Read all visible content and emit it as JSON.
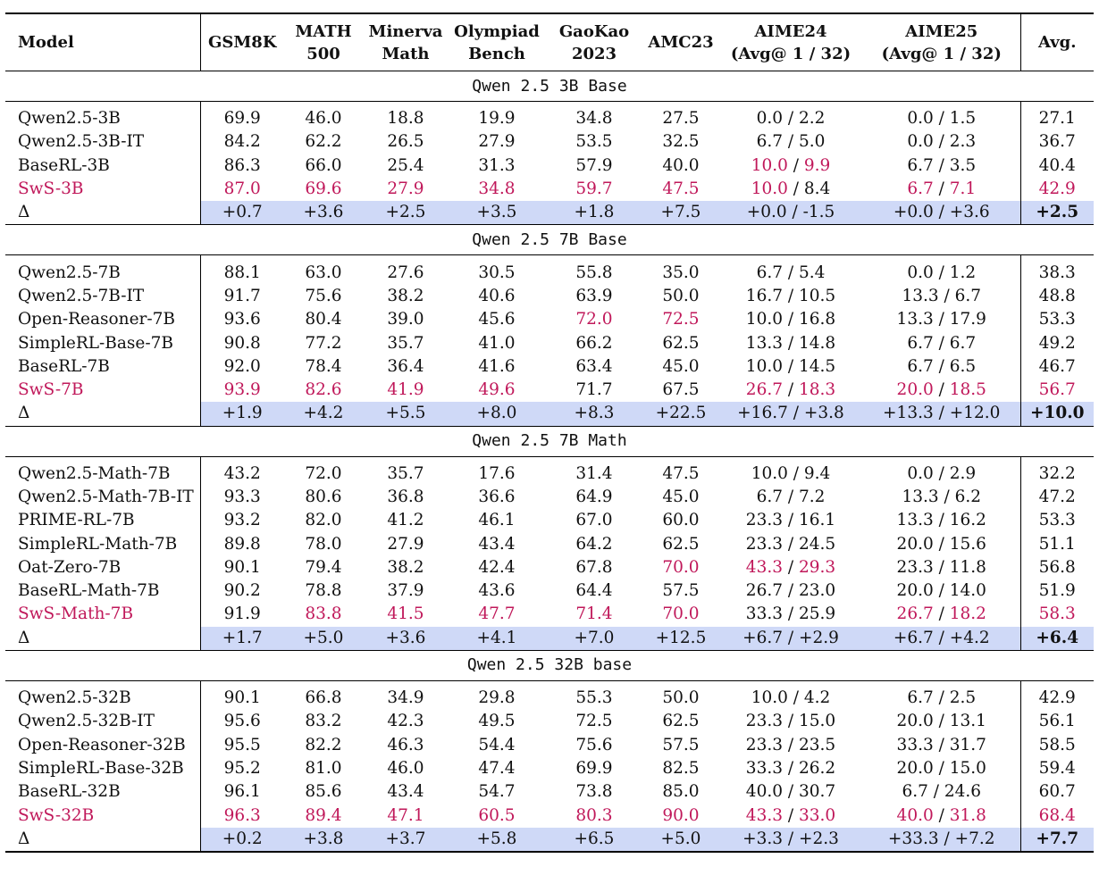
{
  "columns": [
    {
      "lines": [
        "Model"
      ]
    },
    {
      "lines": [
        "GSM8K"
      ]
    },
    {
      "lines": [
        "MATH",
        "500"
      ]
    },
    {
      "lines": [
        "Minerva",
        "Math"
      ]
    },
    {
      "lines": [
        "Olympiad",
        "Bench"
      ]
    },
    {
      "lines": [
        "GaoKao",
        "2023"
      ]
    },
    {
      "lines": [
        "AMC23"
      ]
    },
    {
      "lines": [
        "AIME24",
        "(Avg@ 1 / 32)"
      ]
    },
    {
      "lines": [
        "AIME25",
        "(Avg@ 1 / 32)"
      ]
    },
    {
      "lines": [
        "Avg."
      ]
    }
  ],
  "highlight_color": "#c0185a",
  "delta_fill": "#cfd9f7",
  "groups": [
    {
      "title": "Qwen 2.5 3B Base",
      "rows": [
        {
          "model": "Qwen2.5-3B",
          "cells": [
            "69.9",
            "46.0",
            "18.8",
            "19.9",
            "34.8",
            "27.5",
            [
              "0.0",
              "2.2"
            ],
            [
              "0.0",
              "1.5"
            ],
            "27.1"
          ]
        },
        {
          "model": "Qwen2.5-3B-IT",
          "cells": [
            "84.2",
            "62.2",
            "26.5",
            "27.9",
            "53.5",
            "32.5",
            [
              "6.7",
              "5.0"
            ],
            [
              "0.0",
              "2.3"
            ],
            "36.7"
          ]
        },
        {
          "model": "BaseRL-3B",
          "cells": [
            "86.3",
            "66.0",
            "25.4",
            "31.3",
            "57.9",
            "40.0",
            [
              "10.0",
              "9.9"
            ],
            [
              "6.7",
              "3.5"
            ],
            "40.4"
          ],
          "hl": [
            "6a",
            "6b"
          ]
        },
        {
          "model": "SwS-3B",
          "model_hl": true,
          "cells": [
            "87.0",
            "69.6",
            "27.9",
            "34.8",
            "59.7",
            "47.5",
            [
              "10.0",
              "8.4"
            ],
            [
              "6.7",
              "7.1"
            ],
            "42.9"
          ],
          "hl": [
            "0",
            "1",
            "2",
            "3",
            "4",
            "5",
            "6a",
            "7a",
            "7b",
            "8"
          ]
        },
        {
          "model": "Δ",
          "delta": true,
          "cells": [
            "+0.7",
            "+3.6",
            "+2.5",
            "+3.5",
            "+1.8",
            "+7.5",
            [
              "+0.0",
              "-1.5"
            ],
            [
              "+0.0",
              "+3.6"
            ],
            "+2.5"
          ]
        }
      ]
    },
    {
      "title": "Qwen 2.5 7B Base",
      "rows": [
        {
          "model": "Qwen2.5-7B",
          "cells": [
            "88.1",
            "63.0",
            "27.6",
            "30.5",
            "55.8",
            "35.0",
            [
              "6.7",
              "5.4"
            ],
            [
              "0.0",
              "1.2"
            ],
            "38.3"
          ]
        },
        {
          "model": "Qwen2.5-7B-IT",
          "cells": [
            "91.7",
            "75.6",
            "38.2",
            "40.6",
            "63.9",
            "50.0",
            [
              "16.7",
              "10.5"
            ],
            [
              "13.3",
              "6.7"
            ],
            "48.8"
          ]
        },
        {
          "model": "Open-Reasoner-7B",
          "cells": [
            "93.6",
            "80.4",
            "39.0",
            "45.6",
            "72.0",
            "72.5",
            [
              "10.0",
              "16.8"
            ],
            [
              "13.3",
              "17.9"
            ],
            "53.3"
          ],
          "hl": [
            "4",
            "5"
          ]
        },
        {
          "model": "SimpleRL-Base-7B",
          "cells": [
            "90.8",
            "77.2",
            "35.7",
            "41.0",
            "66.2",
            "62.5",
            [
              "13.3",
              "14.8"
            ],
            [
              "6.7",
              "6.7"
            ],
            "49.2"
          ]
        },
        {
          "model": "BaseRL-7B",
          "cells": [
            "92.0",
            "78.4",
            "36.4",
            "41.6",
            "63.4",
            "45.0",
            [
              "10.0",
              "14.5"
            ],
            [
              "6.7",
              "6.5"
            ],
            "46.7"
          ]
        },
        {
          "model": "SwS-7B",
          "model_hl": true,
          "cells": [
            "93.9",
            "82.6",
            "41.9",
            "49.6",
            "71.7",
            "67.5",
            [
              "26.7",
              "18.3"
            ],
            [
              "20.0",
              "18.5"
            ],
            "56.7"
          ],
          "hl": [
            "0",
            "1",
            "2",
            "3",
            "6a",
            "6b",
            "7a",
            "7b",
            "8"
          ]
        },
        {
          "model": "Δ",
          "delta": true,
          "cells": [
            "+1.9",
            "+4.2",
            "+5.5",
            "+8.0",
            "+8.3",
            "+22.5",
            [
              "+16.7",
              "+3.8"
            ],
            [
              "+13.3",
              "+12.0"
            ],
            "+10.0"
          ]
        }
      ]
    },
    {
      "title": "Qwen 2.5 7B Math",
      "rows": [
        {
          "model": "Qwen2.5-Math-7B",
          "cells": [
            "43.2",
            "72.0",
            "35.7",
            "17.6",
            "31.4",
            "47.5",
            [
              "10.0",
              "9.4"
            ],
            [
              "0.0",
              "2.9"
            ],
            "32.2"
          ]
        },
        {
          "model": "Qwen2.5-Math-7B-IT",
          "cells": [
            "93.3",
            "80.6",
            "36.8",
            "36.6",
            "64.9",
            "45.0",
            [
              "6.7",
              "7.2"
            ],
            [
              "13.3",
              "6.2"
            ],
            "47.2"
          ]
        },
        {
          "model": "PRIME-RL-7B",
          "cells": [
            "93.2",
            "82.0",
            "41.2",
            "46.1",
            "67.0",
            "60.0",
            [
              "23.3",
              "16.1"
            ],
            [
              "13.3",
              "16.2"
            ],
            "53.3"
          ]
        },
        {
          "model": "SimpleRL-Math-7B",
          "cells": [
            "89.8",
            "78.0",
            "27.9",
            "43.4",
            "64.2",
            "62.5",
            [
              "23.3",
              "24.5"
            ],
            [
              "20.0",
              "15.6"
            ],
            "51.1"
          ]
        },
        {
          "model": "Oat-Zero-7B",
          "cells": [
            "90.1",
            "79.4",
            "38.2",
            "42.4",
            "67.8",
            "70.0",
            [
              "43.3",
              "29.3"
            ],
            [
              "23.3",
              "11.8"
            ],
            "56.8"
          ],
          "hl": [
            "5",
            "6a",
            "6b"
          ]
        },
        {
          "model": "BaseRL-Math-7B",
          "cells": [
            "90.2",
            "78.8",
            "37.9",
            "43.6",
            "64.4",
            "57.5",
            [
              "26.7",
              "23.0"
            ],
            [
              "20.0",
              "14.0"
            ],
            "51.9"
          ]
        },
        {
          "model": "SwS-Math-7B",
          "model_hl": true,
          "cells": [
            "91.9",
            "83.8",
            "41.5",
            "47.7",
            "71.4",
            "70.0",
            [
              "33.3",
              "25.9"
            ],
            [
              "26.7",
              "18.2"
            ],
            "58.3"
          ],
          "hl": [
            "1",
            "2",
            "3",
            "4",
            "5",
            "7a",
            "7b",
            "8"
          ]
        },
        {
          "model": "Δ",
          "delta": true,
          "cells": [
            "+1.7",
            "+5.0",
            "+3.6",
            "+4.1",
            "+7.0",
            "+12.5",
            [
              "+6.7",
              "+2.9"
            ],
            [
              "+6.7",
              "+4.2"
            ],
            "+6.4"
          ]
        }
      ]
    },
    {
      "title": "Qwen 2.5 32B base",
      "rows": [
        {
          "model": "Qwen2.5-32B",
          "cells": [
            "90.1",
            "66.8",
            "34.9",
            "29.8",
            "55.3",
            "50.0",
            [
              "10.0",
              "4.2"
            ],
            [
              "6.7",
              "2.5"
            ],
            "42.9"
          ]
        },
        {
          "model": "Qwen2.5-32B-IT",
          "cells": [
            "95.6",
            "83.2",
            "42.3",
            "49.5",
            "72.5",
            "62.5",
            [
              "23.3",
              "15.0"
            ],
            [
              "20.0",
              "13.1"
            ],
            "56.1"
          ]
        },
        {
          "model": "Open-Reasoner-32B",
          "cells": [
            "95.5",
            "82.2",
            "46.3",
            "54.4",
            "75.6",
            "57.5",
            [
              "23.3",
              "23.5"
            ],
            [
              "33.3",
              "31.7"
            ],
            "58.5"
          ]
        },
        {
          "model": "SimpleRL-Base-32B",
          "cells": [
            "95.2",
            "81.0",
            "46.0",
            "47.4",
            "69.9",
            "82.5",
            [
              "33.3",
              "26.2"
            ],
            [
              "20.0",
              "15.0"
            ],
            "59.4"
          ]
        },
        {
          "model": "BaseRL-32B",
          "cells": [
            "96.1",
            "85.6",
            "43.4",
            "54.7",
            "73.8",
            "85.0",
            [
              "40.0",
              "30.7"
            ],
            [
              "6.7",
              "24.6"
            ],
            "60.7"
          ]
        },
        {
          "model": "SwS-32B",
          "model_hl": true,
          "cells": [
            "96.3",
            "89.4",
            "47.1",
            "60.5",
            "80.3",
            "90.0",
            [
              "43.3",
              "33.0"
            ],
            [
              "40.0",
              "31.8"
            ],
            "68.4"
          ],
          "hl": [
            "0",
            "1",
            "2",
            "3",
            "4",
            "5",
            "6a",
            "6b",
            "7a",
            "7b",
            "8"
          ]
        },
        {
          "model": "Δ",
          "delta": true,
          "cells": [
            "+0.2",
            "+3.8",
            "+3.7",
            "+5.8",
            "+6.5",
            "+5.0",
            [
              "+3.3",
              "+2.3"
            ],
            [
              "+33.3",
              "+7.2"
            ],
            "+7.7"
          ]
        }
      ]
    }
  ]
}
